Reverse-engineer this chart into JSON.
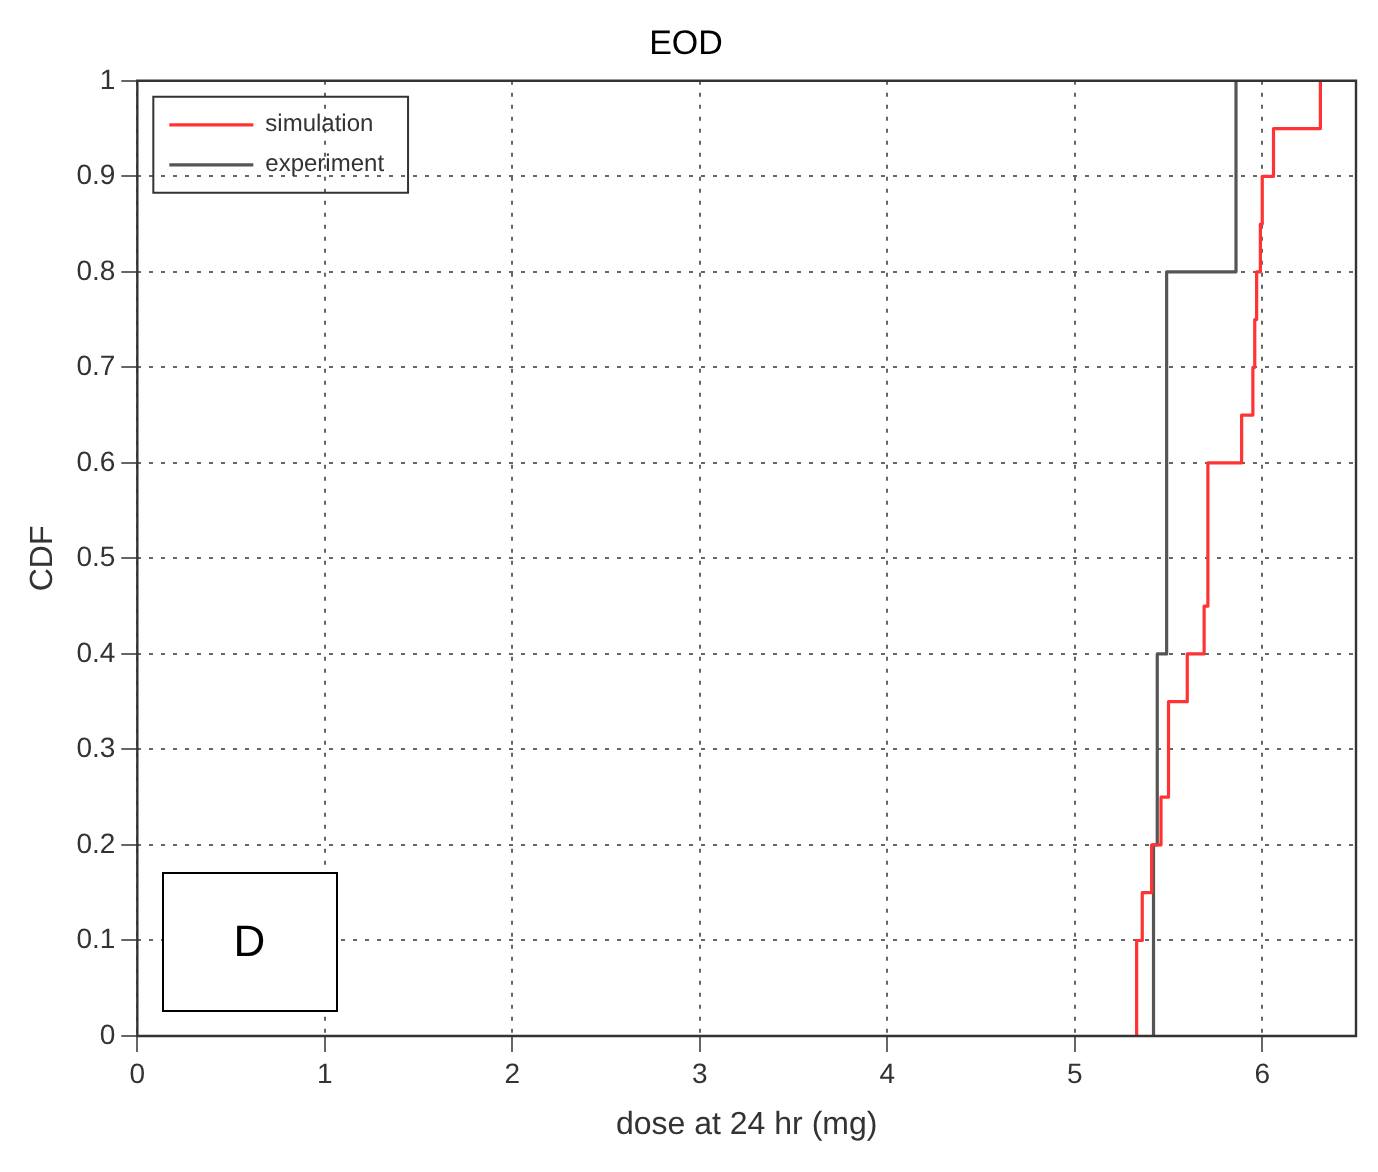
{
  "chart_data": {
    "type": "step",
    "title": "EOD",
    "xlabel": "dose at 24 hr (mg)",
    "ylabel": "CDF",
    "xlim": [
      0,
      6.5
    ],
    "xticks": [
      0,
      1,
      2,
      3,
      4,
      5,
      6
    ],
    "ylim": [
      0,
      1
    ],
    "yticks": [
      0,
      0.1,
      0.2,
      0.3,
      0.4,
      0.5,
      0.6,
      0.7,
      0.8,
      0.9,
      1
    ],
    "grid": true,
    "legend": "top left",
    "line_style": "solid",
    "marker": "none",
    "annotations": [
      "D"
    ],
    "series": [
      {
        "name": "simulation",
        "color": "#ff3333",
        "x": [
          5.33,
          5.33,
          5.36,
          5.41,
          5.46,
          5.5,
          5.6,
          5.69,
          5.71,
          5.89,
          5.95,
          5.96,
          5.97,
          5.99,
          6.0,
          6.06,
          6.31
        ],
        "values": [
          0,
          0.1,
          0.15,
          0.2,
          0.25,
          0.35,
          0.4,
          0.45,
          0.6,
          0.65,
          0.7,
          0.75,
          0.8,
          0.85,
          0.9,
          0.95,
          1
        ]
      },
      {
        "name": "experiment",
        "color": "#555555",
        "x": [
          5.42,
          5.42,
          5.44,
          5.49,
          5.86
        ],
        "values": [
          0,
          0.2,
          0.4,
          0.8,
          1
        ]
      }
    ]
  }
}
